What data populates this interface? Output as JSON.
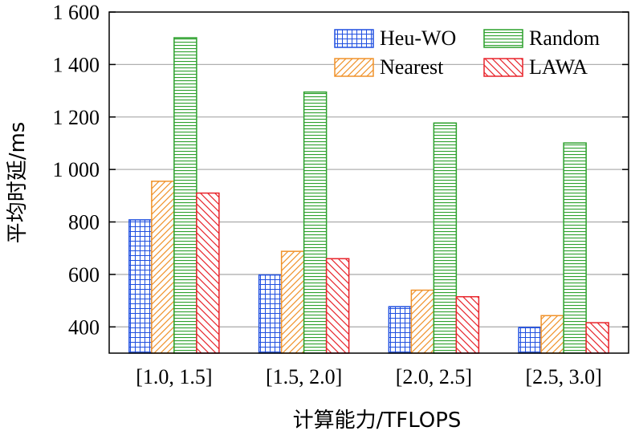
{
  "chart_data": {
    "type": "bar",
    "title": "",
    "xlabel": "计算能力/TFLOPS",
    "ylabel": "平均时延/ms",
    "categories": [
      "[1.0, 1.5]",
      "[1.5, 2.0]",
      "[2.0, 2.5]",
      "[2.5, 3.0]"
    ],
    "ylim": [
      300,
      1600
    ],
    "yticks": [
      400,
      600,
      800,
      1000,
      1200,
      1400,
      1600
    ],
    "ytick_labels": [
      "400",
      "600",
      "800",
      "1 000",
      "1 200",
      "1 400",
      "1 600"
    ],
    "grid": true,
    "legend_position": "top-right",
    "series": [
      {
        "name": "Heu-WO",
        "values": [
          808,
          598,
          477,
          398
        ],
        "color": "#1f4fe0",
        "pattern": "grid"
      },
      {
        "name": "Nearest",
        "values": [
          955,
          688,
          540,
          443
        ],
        "color": "#f0922a",
        "pattern": "diagonal-up"
      },
      {
        "name": "Random",
        "values": [
          1502,
          1295,
          1177,
          1101
        ],
        "color": "#2ca02c",
        "pattern": "horizontal"
      },
      {
        "name": "LAWA",
        "values": [
          910,
          660,
          515,
          416
        ],
        "color": "#e8242b",
        "pattern": "diagonal-down"
      }
    ]
  }
}
